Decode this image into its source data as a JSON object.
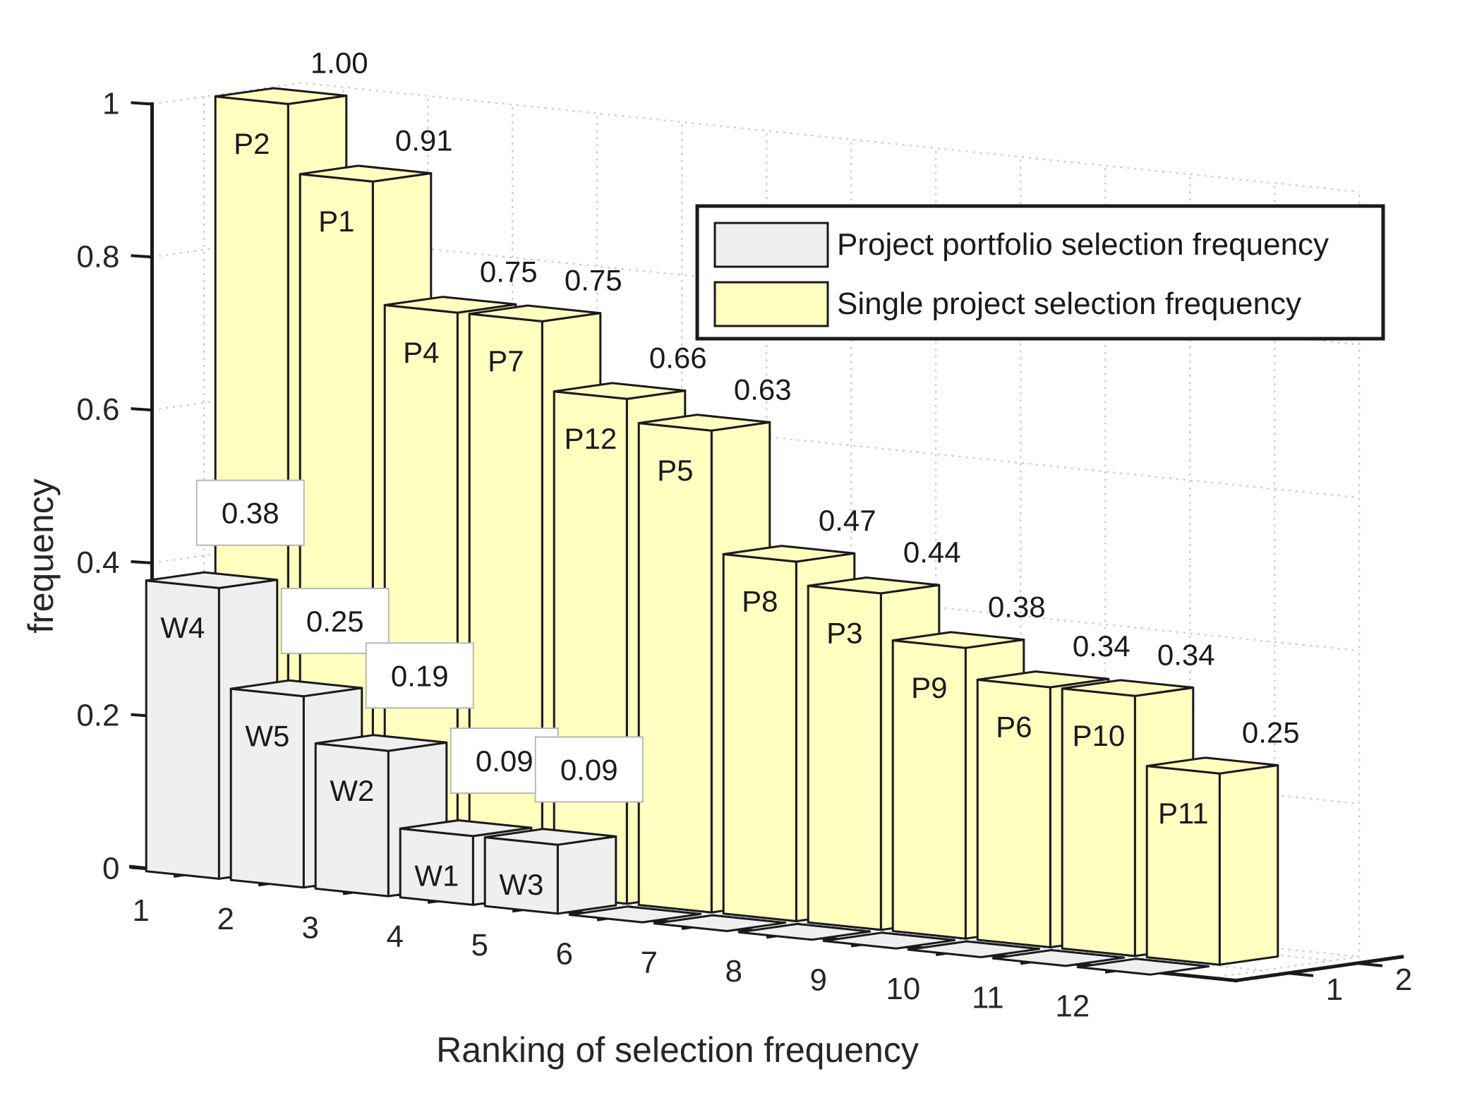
{
  "chart_data": {
    "type": "bar3d",
    "title": "",
    "xlabel": "Ranking of selection frequency",
    "ylabel": "frequency",
    "zlabel": "",
    "ylim": [
      0,
      1
    ],
    "yticks": [
      "0",
      "0.2",
      "0.4",
      "0.6",
      "0.8",
      "1"
    ],
    "xticks": [
      "1",
      "2",
      "3",
      "4",
      "5",
      "6",
      "7",
      "8",
      "9",
      "10",
      "11",
      "12"
    ],
    "zticks": [
      "1",
      "2"
    ],
    "grid": true,
    "legend_position": "top-right",
    "colors": {
      "portfolio": "#efeff0",
      "single": "#ffffc0",
      "edge": "#1a1a1a",
      "grid": "#c8c8c8"
    },
    "series": [
      {
        "name": "Project portfolio selection frequency",
        "row": 1,
        "values": [
          0.38,
          0.25,
          0.19,
          0.09,
          0.09,
          0,
          0,
          0,
          0,
          0,
          0,
          0
        ],
        "labels": [
          "W4",
          "W5",
          "W2",
          "W1",
          "W3",
          "",
          "",
          "",
          "",
          "",
          "",
          ""
        ],
        "value_labels": [
          "0.38",
          "0.25",
          "0.19",
          "0.09",
          "0.09",
          "",
          "",
          "",
          "",
          "",
          "",
          ""
        ]
      },
      {
        "name": "Single project selection frequency",
        "row": 2,
        "values": [
          1.0,
          0.91,
          0.75,
          0.75,
          0.66,
          0.63,
          0.47,
          0.44,
          0.38,
          0.34,
          0.34,
          0.25
        ],
        "labels": [
          "P2",
          "P1",
          "P4",
          "P7",
          "P12",
          "P5",
          "P8",
          "P3",
          "P9",
          "P6",
          "P10",
          "P11"
        ],
        "value_labels": [
          "1.00",
          "0.91",
          "0.75",
          "0.75",
          "0.66",
          "0.63",
          "0.47",
          "0.44",
          "0.38",
          "0.34",
          "0.34",
          "0.25"
        ]
      }
    ]
  }
}
